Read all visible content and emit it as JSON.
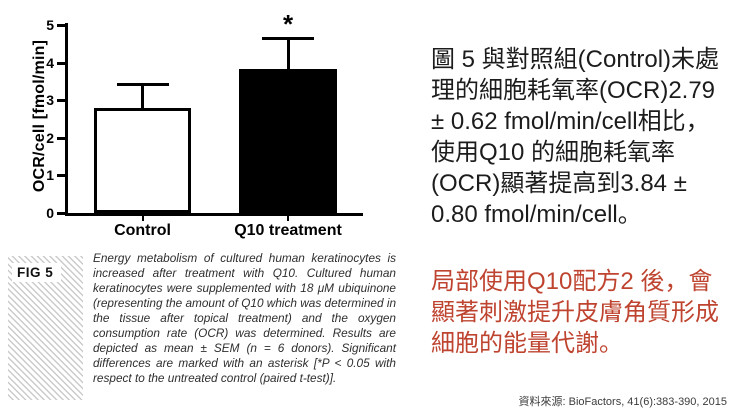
{
  "chart_data": {
    "type": "bar",
    "title": "",
    "xlabel": "",
    "ylabel": "OCR/cell [fmol/min]",
    "ylim": [
      0,
      5
    ],
    "yticks": [
      0,
      1,
      2,
      3,
      4,
      5
    ],
    "categories": [
      "Control",
      "Q10 treatment"
    ],
    "values": [
      2.79,
      3.84
    ],
    "errors": [
      0.62,
      0.8
    ],
    "error_type": "SEM",
    "annotations": [
      "",
      "*"
    ],
    "bar_fills": [
      "#ffffff",
      "#000000"
    ],
    "bar_border": "#000000",
    "grid": false,
    "legend": false
  },
  "figure": {
    "label": "FIG 5",
    "caption": "Energy metabolism of cultured human keratinocytes is increased after treatment with Q10. Cultured human keratinocytes were supplemented with 18 μM ubiquinone (representing the amount of Q10 which was determined in the tissue after topical treatment) and the oxygen consumption rate (OCR) was determined. Results are depicted as mean ± SEM (n = 6 donors). Significant differences are marked with an asterisk [*P < 0.05 with respect to the untreated control (paired t-test)]."
  },
  "annotation": {
    "main_text": "圖 5 與對照組(Control)未處理的細胞耗氧率(OCR)2.79 ± 0.62 fmol/min/cell相比，使用Q10 的細胞耗氧率(OCR)顯著提高到3.84 ± 0.80 fmol/min/cell。",
    "highlight_text": "局部使用Q10配方2 後，會顯著刺激提升皮膚角質形成細胞的能量代謝。",
    "highlight_color": "#bf4430",
    "main_color": "#1c1c1c",
    "source": "資料來源: BioFactors, 41(6):383-390, 2015"
  }
}
